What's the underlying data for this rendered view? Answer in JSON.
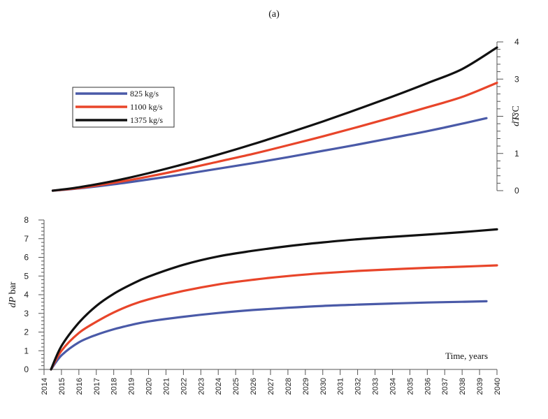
{
  "panel_label": "(a)",
  "chart_data": [
    {
      "type": "line",
      "ylabel_italic": "dT",
      "ylabel_unit": "°C",
      "xlim": [
        2014,
        2040
      ],
      "ylim": [
        0,
        4
      ],
      "yticks": [
        "0",
        "1",
        "2",
        "3",
        "4"
      ],
      "y_axis_side": "right",
      "legend_placement": "top-left",
      "series": [
        {
          "name": "825 kg/s",
          "color": "#4a5aa8",
          "x": [
            2014.5,
            2016,
            2018,
            2020,
            2022,
            2024,
            2026,
            2028,
            2030,
            2032,
            2034,
            2036,
            2038,
            2039.4
          ],
          "y": [
            0.0,
            0.06,
            0.17,
            0.3,
            0.44,
            0.59,
            0.74,
            0.9,
            1.07,
            1.24,
            1.42,
            1.6,
            1.8,
            1.95
          ]
        },
        {
          "name": "1100 kg/s",
          "color": "#e8452a",
          "x": [
            2014.5,
            2016,
            2018,
            2020,
            2022,
            2024,
            2026,
            2028,
            2030,
            2032,
            2034,
            2036,
            2038,
            2040
          ],
          "y": [
            0.0,
            0.07,
            0.21,
            0.38,
            0.57,
            0.78,
            0.99,
            1.22,
            1.46,
            1.71,
            1.97,
            2.24,
            2.52,
            2.9
          ]
        },
        {
          "name": "1375 kg/s",
          "color": "#111111",
          "x": [
            2014.5,
            2016,
            2018,
            2020,
            2022,
            2024,
            2026,
            2028,
            2030,
            2032,
            2034,
            2036,
            2038,
            2040
          ],
          "y": [
            0.0,
            0.09,
            0.26,
            0.47,
            0.71,
            0.97,
            1.25,
            1.55,
            1.86,
            2.19,
            2.53,
            2.89,
            3.27,
            3.85
          ]
        }
      ]
    },
    {
      "type": "line",
      "ylabel_italic": "dP",
      "ylabel_unit": " bar",
      "xlabel": "Time, years",
      "xlim": [
        2014,
        2040
      ],
      "ylim": [
        0,
        8
      ],
      "yticks": [
        "0",
        "1",
        "2",
        "3",
        "4",
        "5",
        "6",
        "7",
        "8"
      ],
      "xticks": [
        "2014",
        "2015",
        "2016",
        "2017",
        "2018",
        "2019",
        "2020",
        "2021",
        "2022",
        "2023",
        "2024",
        "2025",
        "2026",
        "2027",
        "2028",
        "2029",
        "2030",
        "2031",
        "2032",
        "2033",
        "2034",
        "2035",
        "2036",
        "2037",
        "2038",
        "2039",
        "2040"
      ],
      "series": [
        {
          "name": "825 kg/s",
          "color": "#4a5aa8",
          "x": [
            2014.4,
            2015,
            2016,
            2017,
            2018,
            2019,
            2020,
            2022,
            2024,
            2026,
            2028,
            2030,
            2032,
            2034,
            2036,
            2038,
            2039.4
          ],
          "y": [
            0.0,
            0.75,
            1.45,
            1.85,
            2.15,
            2.38,
            2.57,
            2.82,
            3.02,
            3.18,
            3.3,
            3.4,
            3.47,
            3.53,
            3.58,
            3.62,
            3.65
          ]
        },
        {
          "name": "1100 kg/s",
          "color": "#e8452a",
          "x": [
            2014.4,
            2015,
            2016,
            2017,
            2018,
            2019,
            2020,
            2022,
            2024,
            2026,
            2028,
            2030,
            2032,
            2034,
            2036,
            2038,
            2040
          ],
          "y": [
            0.0,
            1.0,
            1.95,
            2.55,
            3.05,
            3.45,
            3.75,
            4.2,
            4.55,
            4.8,
            5.0,
            5.15,
            5.27,
            5.36,
            5.44,
            5.5,
            5.57
          ]
        },
        {
          "name": "1375 kg/s",
          "color": "#111111",
          "x": [
            2014.4,
            2015,
            2016,
            2017,
            2018,
            2019,
            2020,
            2022,
            2024,
            2026,
            2028,
            2030,
            2032,
            2034,
            2036,
            2038,
            2040
          ],
          "y": [
            0.0,
            1.25,
            2.5,
            3.4,
            4.05,
            4.55,
            4.97,
            5.6,
            6.05,
            6.35,
            6.6,
            6.8,
            6.97,
            7.1,
            7.22,
            7.35,
            7.5
          ]
        }
      ]
    }
  ]
}
